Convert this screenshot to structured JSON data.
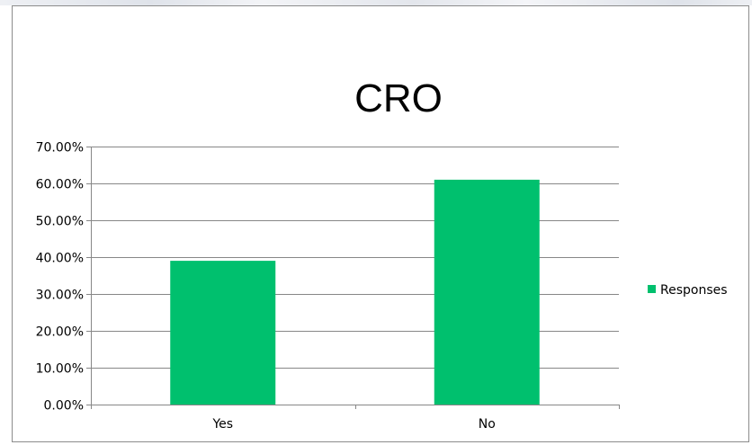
{
  "chart_data": {
    "type": "bar",
    "title": "CRO",
    "categories": [
      "Yes",
      "No"
    ],
    "series": [
      {
        "name": "Responses",
        "values": [
          0.39,
          0.61
        ],
        "color": "#00c06e"
      }
    ],
    "ylim": [
      0,
      0.7
    ],
    "y_ticks": [
      0,
      0.1,
      0.2,
      0.3,
      0.4,
      0.5,
      0.6,
      0.7
    ],
    "y_tick_labels": [
      "0.00%",
      "10.00%",
      "20.00%",
      "30.00%",
      "40.00%",
      "50.00%",
      "60.00%",
      "70.00%"
    ],
    "grid": true,
    "legend_position": "right"
  }
}
